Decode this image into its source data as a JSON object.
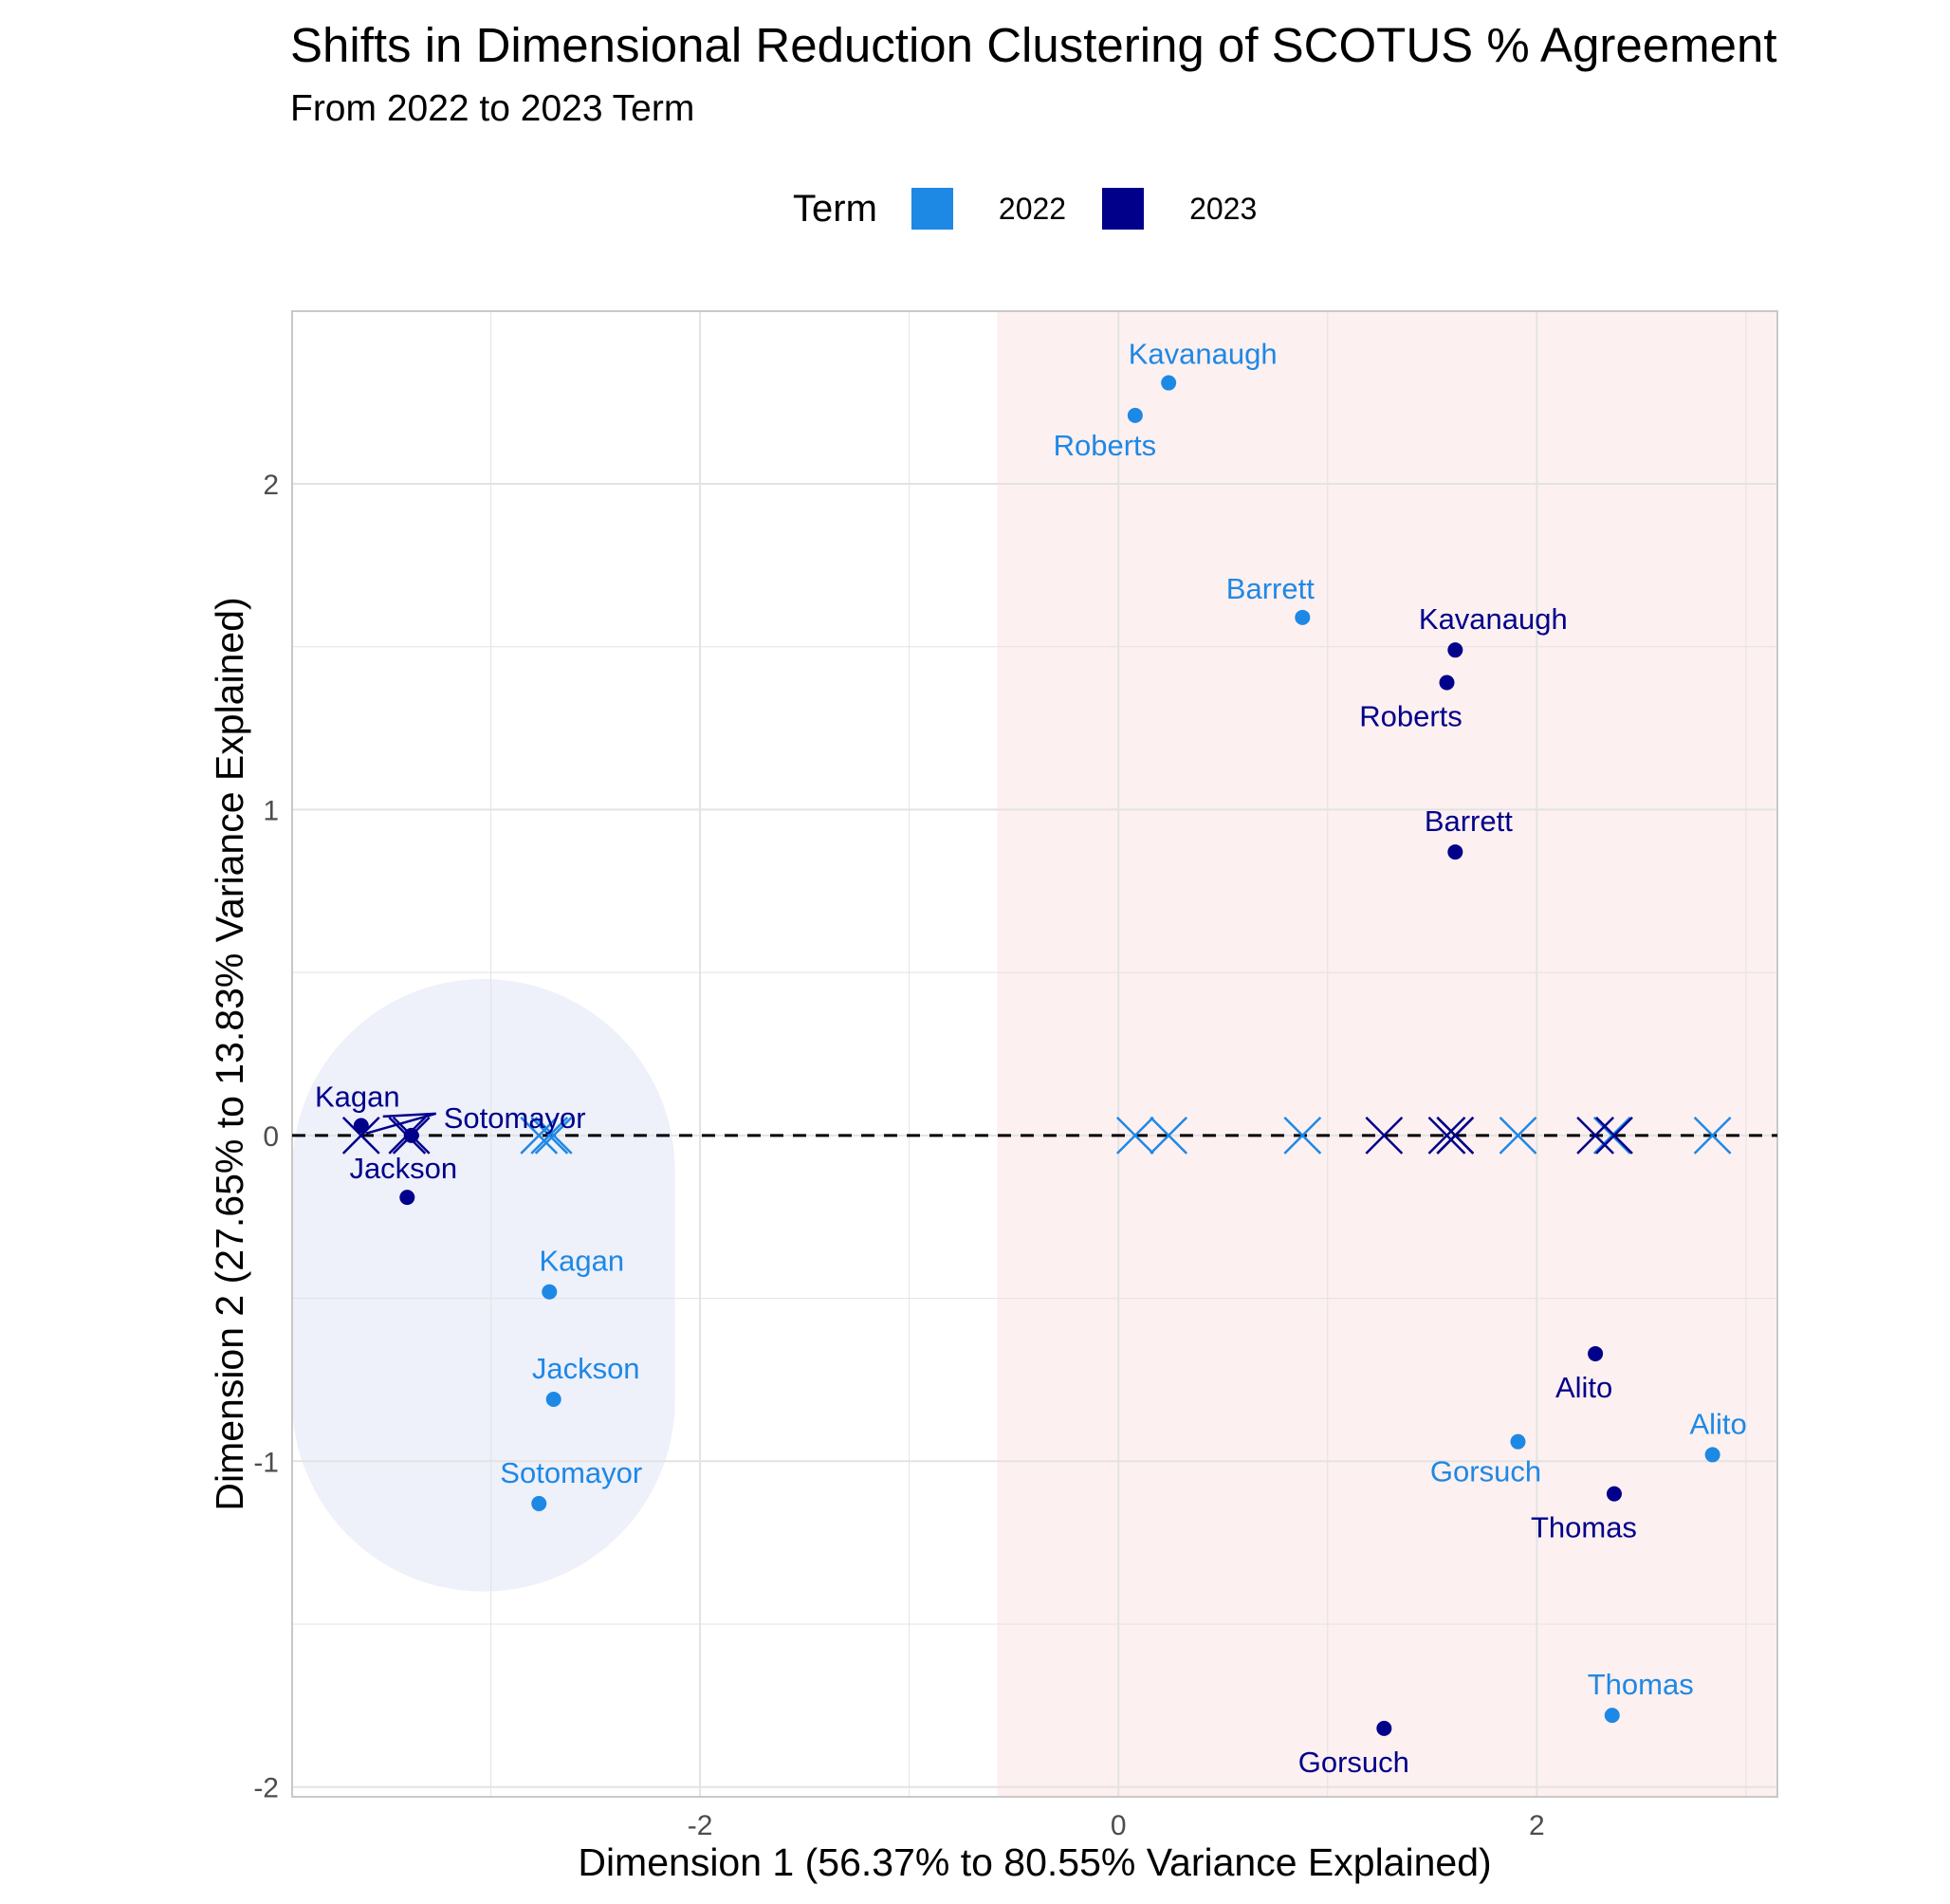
{
  "title": "Shifts in Dimensional Reduction Clustering of SCOTUS % Agreement",
  "subtitle": "From 2022 to 2023 Term",
  "legend": {
    "title": "Term",
    "items": [
      {
        "label": "2022",
        "color": "#1E88E5"
      },
      {
        "label": "2023",
        "color": "#00008B"
      }
    ]
  },
  "colors": {
    "2022": "#1E88E5",
    "2023": "#00008B",
    "right_region": "#FDF0F0",
    "left_region": "#EEF0FA",
    "grid": "#E3E3E3",
    "zero_line": "#000000"
  },
  "chart_data": {
    "type": "scatter",
    "xlabel": "Dimension 1 (56.37% to 80.55% Variance Explained)",
    "ylabel": "Dimension 2 (27.65% to 13.83% Variance Explained)",
    "xlim": [
      -3.95,
      3.15
    ],
    "ylim": [
      -2.03,
      2.53
    ],
    "x_ticks": [
      -2,
      0,
      2
    ],
    "y_ticks": [
      -2,
      -1,
      0,
      1,
      2
    ],
    "grid": true,
    "legend_position": "top",
    "regions": [
      {
        "name": "right-cluster-region",
        "x_from": -0.58,
        "x_to": 3.15,
        "color": "#FDF0F0"
      },
      {
        "name": "left-cluster-region",
        "x_from": -3.95,
        "x_to": -2.12,
        "y_from": -1.4,
        "y_to": 0.48,
        "color": "#EEF0FA"
      }
    ],
    "reference_line": {
      "y": 0,
      "style": "dashed"
    },
    "series": [
      {
        "name": "2022",
        "points": [
          {
            "label": "Kavanaugh",
            "x": 0.24,
            "y": 2.31
          },
          {
            "label": "Roberts",
            "x": 0.08,
            "y": 2.21
          },
          {
            "label": "Barrett",
            "x": 0.88,
            "y": 1.59
          },
          {
            "label": "Kagan",
            "x": -2.72,
            "y": -0.48
          },
          {
            "label": "Jackson",
            "x": -2.7,
            "y": -0.81
          },
          {
            "label": "Sotomayor",
            "x": -2.77,
            "y": -1.13
          },
          {
            "label": "Gorsuch",
            "x": 1.91,
            "y": -0.94
          },
          {
            "label": "Alito",
            "x": 2.84,
            "y": -0.98
          },
          {
            "label": "Thomas",
            "x": 2.36,
            "y": -1.78
          }
        ]
      },
      {
        "name": "2023",
        "points": [
          {
            "label": "Kavanaugh",
            "x": 1.61,
            "y": 1.49
          },
          {
            "label": "Roberts",
            "x": 1.57,
            "y": 1.39
          },
          {
            "label": "Barrett",
            "x": 1.61,
            "y": 0.87
          },
          {
            "label": "Kagan",
            "x": -3.62,
            "y": 0.03
          },
          {
            "label": "Sotomayor",
            "x": -3.38,
            "y": 0.0
          },
          {
            "label": "Jackson",
            "x": -3.4,
            "y": -0.19
          },
          {
            "label": "Alito",
            "x": 2.28,
            "y": -0.67
          },
          {
            "label": "Thomas",
            "x": 2.37,
            "y": -1.1
          },
          {
            "label": "Gorsuch",
            "x": 1.27,
            "y": -1.82
          }
        ]
      }
    ]
  }
}
